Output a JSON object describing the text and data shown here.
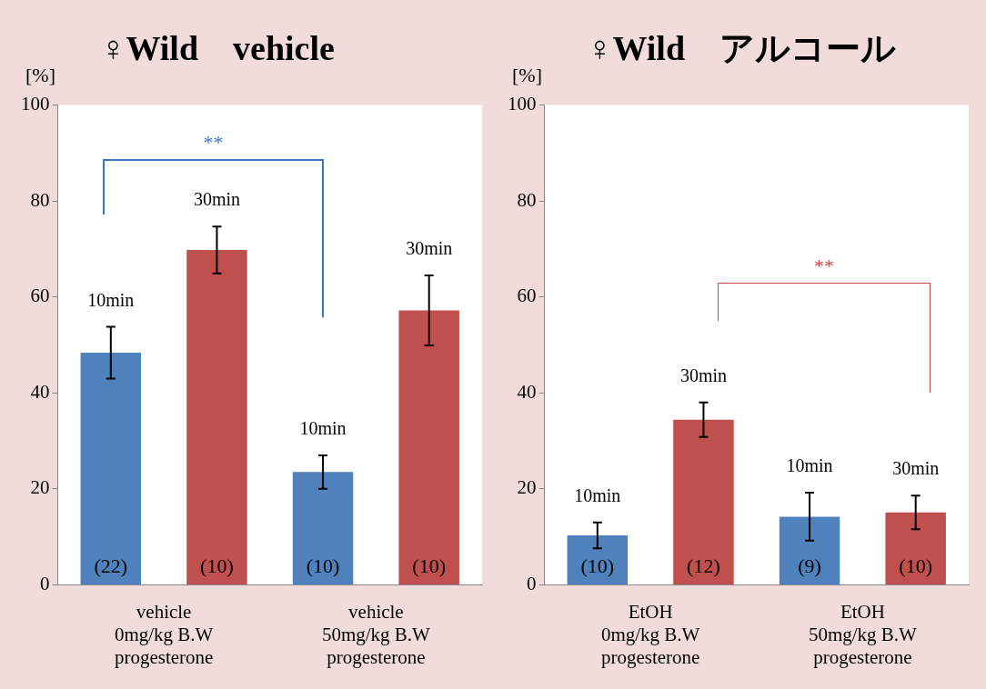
{
  "chart_data": [
    {
      "type": "bar",
      "title": "♀Wild　vehicle",
      "ylabel": "[%]",
      "categories": [
        "vehicle\n0mg/kg B.W\nprogesterone",
        "vehicle\n50mg/kg B.W\nprogesterone"
      ],
      "series": [
        {
          "name": "10min",
          "color": "#4f81bd",
          "values": [
            48.4,
            23.5
          ],
          "errors": [
            5.4,
            3.5
          ]
        },
        {
          "name": "30min",
          "color": "#c0504d",
          "values": [
            69.8,
            57.2
          ],
          "errors": [
            4.9,
            7.3
          ]
        }
      ],
      "ylim": [
        0,
        100
      ],
      "yticks": [
        0,
        20,
        40,
        60,
        80,
        100
      ],
      "grid": false,
      "legend": false,
      "annotations": [
        "**",
        "(22)",
        "(10)",
        "(10)",
        "(10)"
      ]
    },
    {
      "type": "bar",
      "title": "♀Wild　アルコール",
      "ylabel": "[%]",
      "categories": [
        "EtOH\n0mg/kg B.W\nprogesterone",
        "EtOH\n50mg/kg B.W\nprogesterone"
      ],
      "series": [
        {
          "name": "10min",
          "color": "#4f81bd",
          "values": [
            10.3,
            14.2
          ],
          "errors": [
            2.7,
            5
          ]
        },
        {
          "name": "30min",
          "color": "#c0504d",
          "values": [
            34.4,
            15.1
          ],
          "errors": [
            3.6,
            3.5
          ]
        }
      ],
      "ylim": [
        0,
        100
      ],
      "yticks": [
        0,
        20,
        40,
        60,
        80,
        100
      ],
      "grid": false,
      "legend": false,
      "annotations": [
        "**",
        "(10)",
        "(12)",
        "(9)",
        "(10)"
      ]
    }
  ]
}
